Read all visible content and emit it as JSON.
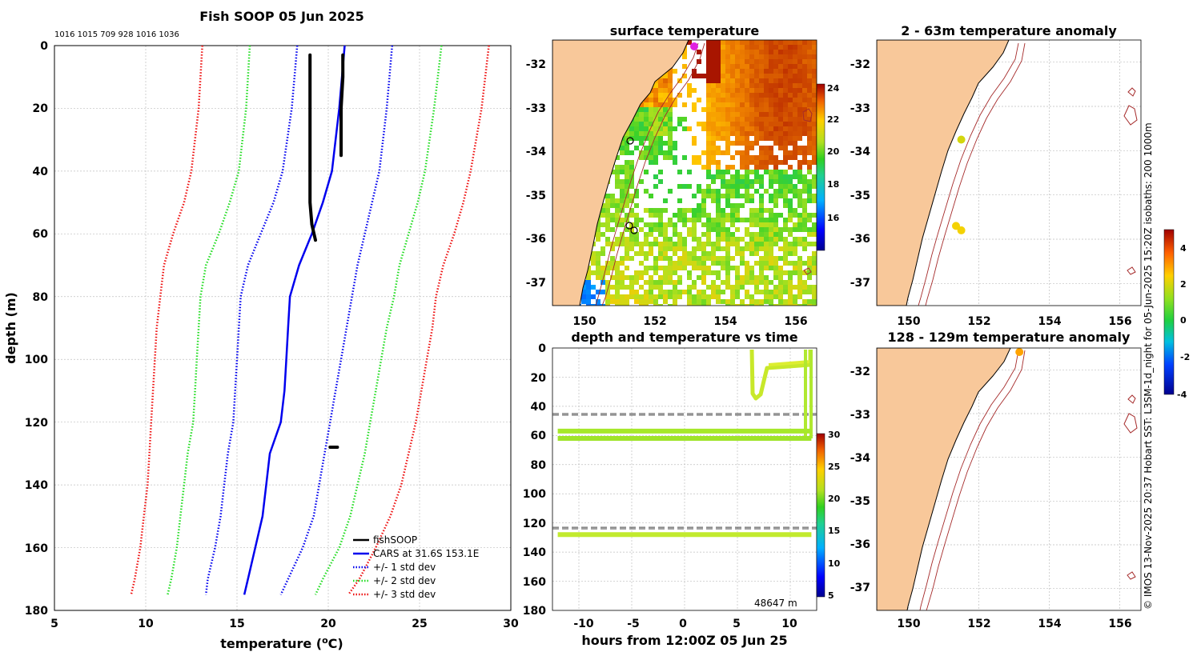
{
  "colors": {
    "land": "#f8c89a",
    "fish": "#000000",
    "cars": "#0000ee",
    "std1": "#0000ee",
    "std2": "#22dd22",
    "std3": "#ee1111",
    "isobath": "#a52a2a",
    "dashed": "#444444"
  },
  "chart_data": [
    {
      "id": "profile",
      "type": "line",
      "title": "Fish SOOP 05 Jun 2025",
      "annotation": "1016 1015 709 928 1016 1036",
      "xlabel": "temperature (",
      "xlabel_sup": "o",
      "xlabel_end": "C)",
      "ylabel": "depth (m)",
      "xlim": [
        5,
        30
      ],
      "ylim": [
        180,
        0
      ],
      "xticks": [
        "5",
        "10",
        "15",
        "20",
        "25",
        "30"
      ],
      "yticks": [
        "0",
        "20",
        "40",
        "60",
        "80",
        "100",
        "120",
        "140",
        "160",
        "180"
      ],
      "legend": [
        "fishSOOP",
        "CARS at 31.6S 153.1E",
        "+/- 1 std dev",
        "+/- 2 std dev",
        "+/- 3 std dev"
      ],
      "legend_position": "bottom-right",
      "series": [
        {
          "name": "CARS at 31.6S 153.1E",
          "style": "solid",
          "color": "cars",
          "depth": [
            0,
            20,
            40,
            50,
            60,
            70,
            80,
            90,
            100,
            110,
            120,
            130,
            140,
            150,
            160,
            170,
            175
          ],
          "temp": [
            20.9,
            20.6,
            20.2,
            19.7,
            19.1,
            18.4,
            17.9,
            17.8,
            17.7,
            17.6,
            17.4,
            16.8,
            16.6,
            16.4,
            16.0,
            15.6,
            15.4
          ]
        },
        {
          "name": "+/- 1 std dev (upper)",
          "style": "dot",
          "color": "std1",
          "depth": [
            0,
            20,
            40,
            50,
            60,
            70,
            80,
            90,
            100,
            110,
            120,
            130,
            140,
            150,
            160,
            170,
            175
          ],
          "temp": [
            23.5,
            23.2,
            22.8,
            22.4,
            22.0,
            21.6,
            21.3,
            21.0,
            20.7,
            20.4,
            20.1,
            19.8,
            19.5,
            19.2,
            18.6,
            17.8,
            17.4
          ]
        },
        {
          "name": "+/- 1 std dev (lower)",
          "style": "dot",
          "color": "std1",
          "depth": [
            0,
            20,
            40,
            50,
            60,
            70,
            80,
            90,
            100,
            110,
            120,
            130,
            140,
            150,
            160,
            170,
            175
          ],
          "temp": [
            18.3,
            18.0,
            17.5,
            17.0,
            16.3,
            15.6,
            15.2,
            15.1,
            15.0,
            14.9,
            14.8,
            14.5,
            14.3,
            14.1,
            13.8,
            13.4,
            13.3
          ]
        },
        {
          "name": "+/- 2 std dev (upper)",
          "style": "dot",
          "color": "std2",
          "depth": [
            0,
            20,
            40,
            50,
            60,
            70,
            80,
            90,
            100,
            110,
            120,
            130,
            140,
            150,
            160,
            170,
            175
          ],
          "temp": [
            26.2,
            25.8,
            25.3,
            24.9,
            24.4,
            23.9,
            23.6,
            23.2,
            22.9,
            22.6,
            22.3,
            22.0,
            21.6,
            21.2,
            20.6,
            19.7,
            19.3
          ]
        },
        {
          "name": "+/- 2 std dev (lower)",
          "style": "dot",
          "color": "std2",
          "depth": [
            0,
            20,
            40,
            50,
            60,
            70,
            80,
            90,
            100,
            110,
            120,
            130,
            140,
            150,
            160,
            170,
            175
          ],
          "temp": [
            15.7,
            15.5,
            15.1,
            14.6,
            14.0,
            13.3,
            13.0,
            12.9,
            12.8,
            12.7,
            12.6,
            12.3,
            12.1,
            11.9,
            11.7,
            11.4,
            11.2
          ]
        },
        {
          "name": "+/- 3 std dev (upper)",
          "style": "dot",
          "color": "std3",
          "depth": [
            0,
            20,
            40,
            50,
            60,
            70,
            80,
            90,
            100,
            110,
            120,
            130,
            140,
            150,
            160,
            170,
            175
          ],
          "temp": [
            28.8,
            28.4,
            27.8,
            27.4,
            26.9,
            26.3,
            25.9,
            25.7,
            25.4,
            25.1,
            24.8,
            24.4,
            24.0,
            23.4,
            22.6,
            21.7,
            21.1
          ]
        },
        {
          "name": "+/- 3 std dev (lower)",
          "style": "dot",
          "color": "std3",
          "depth": [
            0,
            20,
            40,
            50,
            60,
            70,
            80,
            90,
            100,
            110,
            120,
            130,
            140,
            150,
            160,
            170,
            175
          ],
          "temp": [
            13.1,
            12.9,
            12.5,
            12.1,
            11.5,
            11.0,
            10.8,
            10.6,
            10.5,
            10.4,
            10.3,
            10.2,
            10.1,
            9.9,
            9.7,
            9.4,
            9.2
          ]
        },
        {
          "name": "fishSOOP cast 1",
          "style": "thick",
          "color": "fish",
          "depth": [
            3,
            10,
            20,
            30,
            40,
            50,
            57,
            62
          ],
          "temp": [
            19.0,
            19.0,
            19.0,
            19.0,
            19.0,
            19.0,
            19.1,
            19.3
          ]
        },
        {
          "name": "fishSOOP cast 2",
          "style": "thick",
          "color": "fish",
          "depth": [
            3,
            10,
            20,
            30,
            35
          ],
          "temp": [
            20.8,
            20.8,
            20.7,
            20.7,
            20.7
          ]
        },
        {
          "name": "fishSOOP 128m",
          "style": "thick",
          "color": "fish",
          "depth": [
            128,
            128
          ],
          "temp": [
            20.1,
            20.5
          ]
        }
      ]
    },
    {
      "id": "surface",
      "type": "heatmap",
      "title": "surface temperature",
      "xticks": [
        "150",
        "152",
        "154",
        "156"
      ],
      "yticks": [
        "-32",
        "-33",
        "-34",
        "-35",
        "-36",
        "-37"
      ],
      "lon": [
        149.1,
        156.6
      ],
      "lat": [
        -37.5,
        -31.5
      ],
      "colorbar_ticks": [
        "16",
        "18",
        "20",
        "22",
        "24"
      ],
      "colorbar_range": [
        14,
        24.5
      ]
    },
    {
      "id": "timeseries",
      "type": "scatter",
      "title": "depth and temperature vs time",
      "xlabel": "hours from 12:00Z 05 Jun 25",
      "xlim": [
        -12.5,
        12.5
      ],
      "ylim": [
        180,
        0
      ],
      "xticks": [
        "-10",
        "-5",
        "0",
        "5",
        "10"
      ],
      "yticks": [
        "0",
        "20",
        "40",
        "60",
        "80",
        "100",
        "120",
        "140",
        "160",
        "180"
      ],
      "colorbar_ticks": [
        "5",
        "10",
        "15",
        "20",
        "25",
        "30"
      ],
      "colorbar_range": [
        4,
        30
      ],
      "note": "48647 m",
      "dashed_depths": [
        45,
        46,
        123,
        124
      ],
      "tracks": [
        {
          "hours": [
            -12,
            12
          ],
          "depth": [
            57,
            57
          ]
        },
        {
          "hours": [
            -12,
            12
          ],
          "depth": [
            62,
            62
          ]
        },
        {
          "hours": [
            -12,
            12
          ],
          "depth": [
            128,
            128
          ]
        }
      ]
    },
    {
      "id": "anom_shallow",
      "type": "scatter",
      "title": "2 - 63m temperature anomaly",
      "xticks": [
        "150",
        "152",
        "154",
        "156"
      ],
      "yticks": [
        "-32",
        "-33",
        "-34",
        "-35",
        "-36",
        "-37"
      ],
      "points": [
        {
          "lon": 151.5,
          "lat": -33.75,
          "anomaly": 1.6
        },
        {
          "lon": 151.35,
          "lat": -35.7,
          "anomaly": 1.9
        },
        {
          "lon": 151.5,
          "lat": -35.8,
          "anomaly": 1.9
        }
      ]
    },
    {
      "id": "anom_deep",
      "type": "scatter",
      "title": "128 - 129m temperature anomaly",
      "xticks": [
        "150",
        "152",
        "154",
        "156"
      ],
      "yticks": [
        "-32",
        "-33",
        "-34",
        "-35",
        "-36",
        "-37"
      ],
      "colorbar_ticks": [
        "-4",
        "-2",
        "0",
        "2",
        "4"
      ],
      "colorbar_range": [
        -4,
        5
      ],
      "points": [
        {
          "lon": 153.15,
          "lat": -31.5,
          "anomaly": 2.6
        }
      ]
    }
  ],
  "side_caption": "© IMOS 13-Nov-2025 20:37 Hobart SST: L3SM-1d_night for 05-Jun-2025 15:20Z isobaths: 200  1000m"
}
